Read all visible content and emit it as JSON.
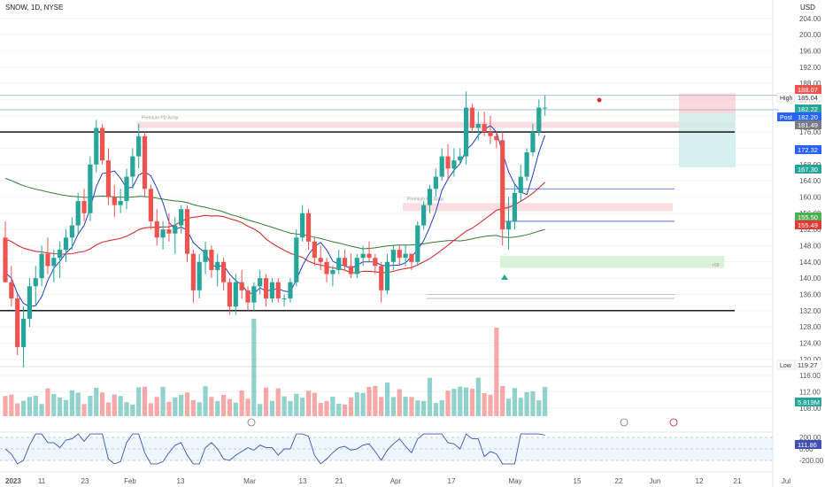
{
  "header": {
    "symbol": "SNOW, 1D, NYSE",
    "currency": "USD"
  },
  "chart_data": {
    "type": "candlestick",
    "price_axis": {
      "ticks": [
        204,
        200,
        196,
        192,
        188,
        184,
        180,
        176,
        172,
        168,
        164,
        160,
        156,
        152,
        148,
        144,
        140,
        136,
        132,
        128,
        124,
        120,
        116,
        112,
        108
      ],
      "range": [
        106,
        207
      ]
    },
    "date_axis": {
      "labels": [
        "2023",
        "11",
        "23",
        "Feb",
        "13",
        "Mar",
        "13",
        "21",
        "Apr",
        "17",
        "May",
        "15",
        "22",
        "Jun",
        "12",
        "21",
        "Jul"
      ]
    },
    "horizontal_levels": [
      {
        "value": 176.0,
        "color": "#000000"
      },
      {
        "value": 132.0,
        "color": "#000000"
      },
      {
        "value": 185.04,
        "color": "#9bb5d8"
      },
      {
        "value": 181.49,
        "color": "#9bb5d8"
      },
      {
        "value": 162.0,
        "color": "#3b5bd9"
      },
      {
        "value": 154.0,
        "color": "#3b5bd9"
      },
      {
        "value": 136.0,
        "color": "#b0b0b0"
      },
      {
        "value": 135.0,
        "color": "#b0b0b0"
      }
    ],
    "zones": [
      {
        "label": "Premium PD Array",
        "top": 178.5,
        "bottom": 177.0,
        "color": "#f8d7da"
      },
      {
        "label": "Premium PD Array",
        "top": 158.5,
        "bottom": 156.5,
        "color": "#f8d7da"
      },
      {
        "label": "+58",
        "top": 145.5,
        "bottom": 142.5,
        "color": "#d4f0d4"
      }
    ],
    "position": {
      "stop_top": 185.5,
      "entry": 180.5,
      "target": 167.3
    },
    "price_tags": [
      {
        "label": "High",
        "value": "185.04",
        "color": "#ffffff",
        "text_color": "#333333"
      },
      {
        "value": "188.07",
        "color": "#ef5350"
      },
      {
        "value": "182.22",
        "color": "#26a69a"
      },
      {
        "label": "Post",
        "value": "182.20",
        "color": "#2962ff"
      },
      {
        "value": "181.49",
        "color": "#787b86"
      },
      {
        "value": "172.32",
        "color": "#2962ff"
      },
      {
        "value": "167.30",
        "color": "#26a69a"
      },
      {
        "value": "155.50",
        "color": "#4caf50"
      },
      {
        "value": "155.49",
        "color": "#e53935"
      },
      {
        "label": "Low",
        "value": "119.27",
        "color": "#ffffff",
        "text_color": "#333333"
      },
      {
        "value": "5.819M",
        "color": "#26a69a"
      }
    ],
    "cci": {
      "ticks": [
        "200.00",
        "0.00",
        "-200.00"
      ],
      "current": "111.86"
    },
    "candles": [
      [
        150,
        154,
        139,
        139
      ],
      [
        139,
        143,
        133,
        135
      ],
      [
        135,
        136,
        121,
        123
      ],
      [
        123,
        133,
        118,
        130
      ],
      [
        130,
        140,
        128,
        138
      ],
      [
        138,
        143,
        133,
        140
      ],
      [
        140,
        148,
        138,
        146
      ],
      [
        146,
        150,
        141,
        143
      ],
      [
        143,
        147,
        139,
        145
      ],
      [
        145,
        149,
        140,
        147
      ],
      [
        147,
        152,
        144,
        150
      ],
      [
        150,
        155,
        147,
        153
      ],
      [
        153,
        161,
        151,
        159
      ],
      [
        159,
        162,
        154,
        156
      ],
      [
        156,
        170,
        154,
        168
      ],
      [
        168,
        179,
        166,
        177
      ],
      [
        177,
        178,
        168,
        169
      ],
      [
        169,
        172,
        158,
        160
      ],
      [
        160,
        163,
        155,
        158
      ],
      [
        158,
        162,
        156,
        159
      ],
      [
        159,
        167,
        157,
        165
      ],
      [
        165,
        172,
        162,
        170
      ],
      [
        170,
        178,
        167,
        175
      ],
      [
        175,
        176,
        160,
        162
      ],
      [
        162,
        163,
        152,
        154
      ],
      [
        154,
        157,
        148,
        150
      ],
      [
        150,
        154,
        147,
        152
      ],
      [
        152,
        156,
        149,
        151
      ],
      [
        151,
        155,
        146,
        153
      ],
      [
        153,
        158,
        151,
        157
      ],
      [
        157,
        158,
        144,
        146
      ],
      [
        146,
        147,
        134,
        137
      ],
      [
        137,
        146,
        135,
        144
      ],
      [
        144,
        149,
        141,
        147
      ],
      [
        147,
        148,
        140,
        142
      ],
      [
        142,
        146,
        138,
        144
      ],
      [
        144,
        145,
        137,
        139
      ],
      [
        139,
        140,
        131,
        133
      ],
      [
        133,
        141,
        131,
        139
      ],
      [
        139,
        142,
        135,
        137
      ],
      [
        137,
        138,
        132,
        134
      ],
      [
        134,
        139,
        132,
        138
      ],
      [
        138,
        142,
        136,
        140
      ],
      [
        140,
        141,
        133,
        135
      ],
      [
        135,
        140,
        134,
        139
      ],
      [
        139,
        140,
        134,
        135
      ],
      [
        135,
        136,
        133,
        135
      ],
      [
        135,
        140,
        134,
        139
      ],
      [
        139,
        152,
        138,
        150
      ],
      [
        150,
        158,
        149,
        156
      ],
      [
        156,
        157,
        147,
        149
      ],
      [
        149,
        150,
        143,
        145
      ],
      [
        145,
        148,
        142,
        144
      ],
      [
        144,
        145,
        139,
        141
      ],
      [
        141,
        143,
        138,
        142
      ],
      [
        142,
        147,
        141,
        145
      ],
      [
        145,
        147,
        142,
        143
      ],
      [
        143,
        146,
        140,
        141
      ],
      [
        141,
        146,
        140,
        145
      ],
      [
        145,
        148,
        143,
        146
      ],
      [
        146,
        149,
        144,
        145
      ],
      [
        145,
        146,
        141,
        143
      ],
      [
        143,
        144,
        134,
        137
      ],
      [
        137,
        146,
        136,
        144
      ],
      [
        144,
        148,
        142,
        147
      ],
      [
        147,
        148,
        143,
        145
      ],
      [
        145,
        148,
        143,
        146
      ],
      [
        146,
        146,
        142,
        144
      ],
      [
        144,
        154,
        143,
        153
      ],
      [
        153,
        159,
        152,
        158
      ],
      [
        158,
        163,
        156,
        162
      ],
      [
        162,
        167,
        160,
        165
      ],
      [
        165,
        172,
        164,
        170
      ],
      [
        170,
        173,
        164,
        167
      ],
      [
        167,
        172,
        165,
        169
      ],
      [
        169,
        172,
        168,
        170
      ],
      [
        170,
        186,
        168,
        182
      ],
      [
        182,
        183,
        176,
        177
      ],
      [
        177,
        181,
        174,
        178
      ],
      [
        178,
        181,
        175,
        176
      ],
      [
        176,
        180,
        173,
        175
      ],
      [
        175,
        176,
        172,
        174
      ],
      [
        174,
        176,
        148,
        152
      ],
      [
        152,
        160,
        147,
        154
      ],
      [
        154,
        163,
        152,
        161
      ],
      [
        161,
        168,
        159,
        165
      ],
      [
        165,
        172,
        164,
        171
      ],
      [
        171,
        178,
        170,
        176
      ],
      [
        176,
        184,
        175,
        182
      ],
      [
        182,
        185,
        180,
        182
      ]
    ]
  }
}
